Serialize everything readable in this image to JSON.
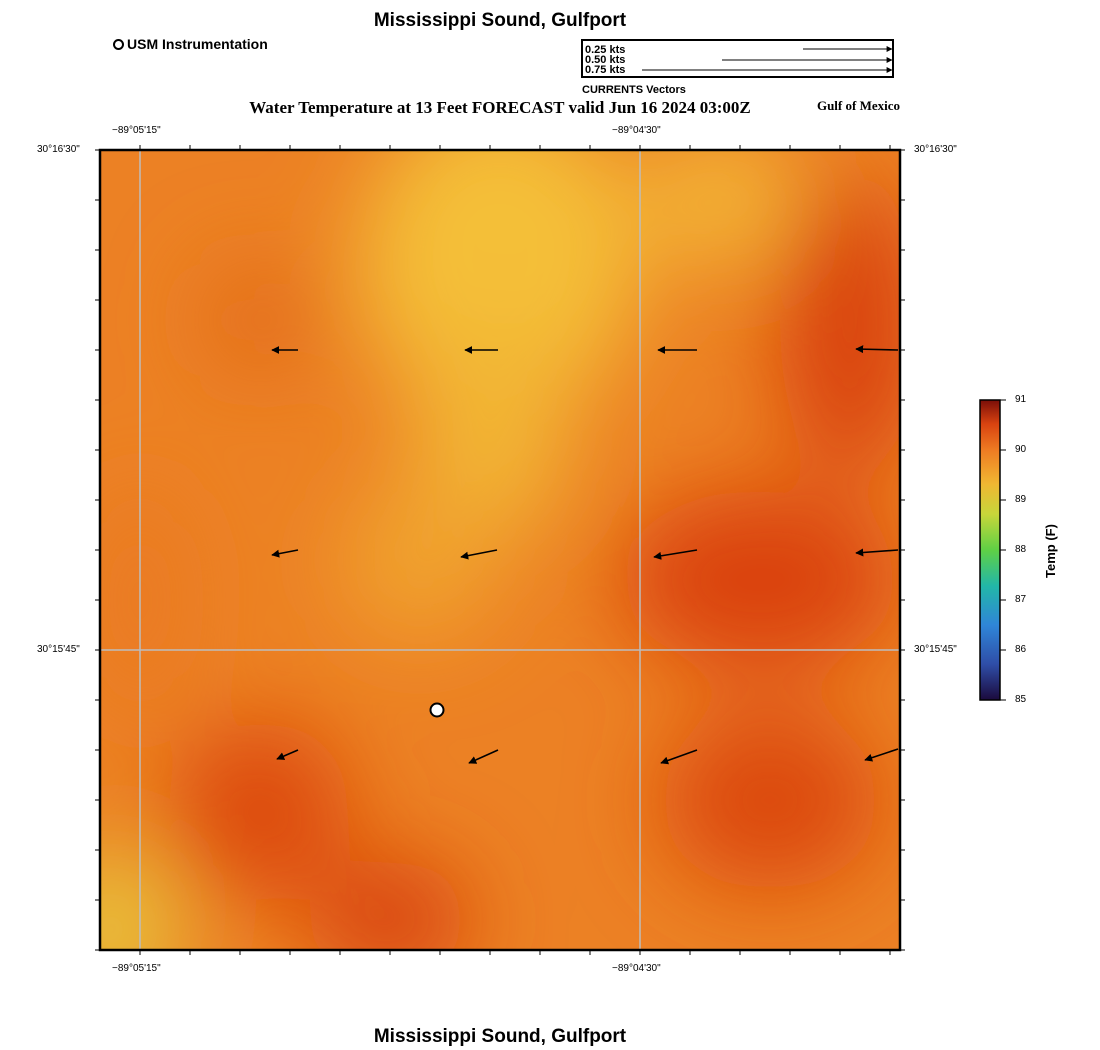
{
  "page": {
    "title_top": "Mississippi Sound, Gulfport",
    "title_bottom": "Mississippi Sound, Gulfport",
    "map_title": "Water Temperature at 13 Feet FORECAST valid Jun 16 2024 03:00Z",
    "region_label": "Gulf of Mexico"
  },
  "legend": {
    "station_label": "USM Instrumentation",
    "vector_scale": [
      "0.25 kts",
      "0.50 kts",
      "0.75 kts"
    ],
    "vector_caption": "CURRENTS Vectors"
  },
  "axes": {
    "lon_labels": [
      "−89°05'15\"",
      "−89°04'30\""
    ],
    "lat_labels": [
      "30°16'30\"",
      "30°15'45\""
    ]
  },
  "colorbar": {
    "title": "Temp (F)",
    "ticks": [
      "91",
      "90",
      "89",
      "88",
      "87",
      "86",
      "85"
    ],
    "min": 85,
    "max": 91
  },
  "colors": {
    "hot": "#d9420c",
    "warm": "#ec7f22",
    "mild": "#f2b033",
    "cool_edge": "#e6c63a",
    "grid": "#bdbdbd"
  }
}
